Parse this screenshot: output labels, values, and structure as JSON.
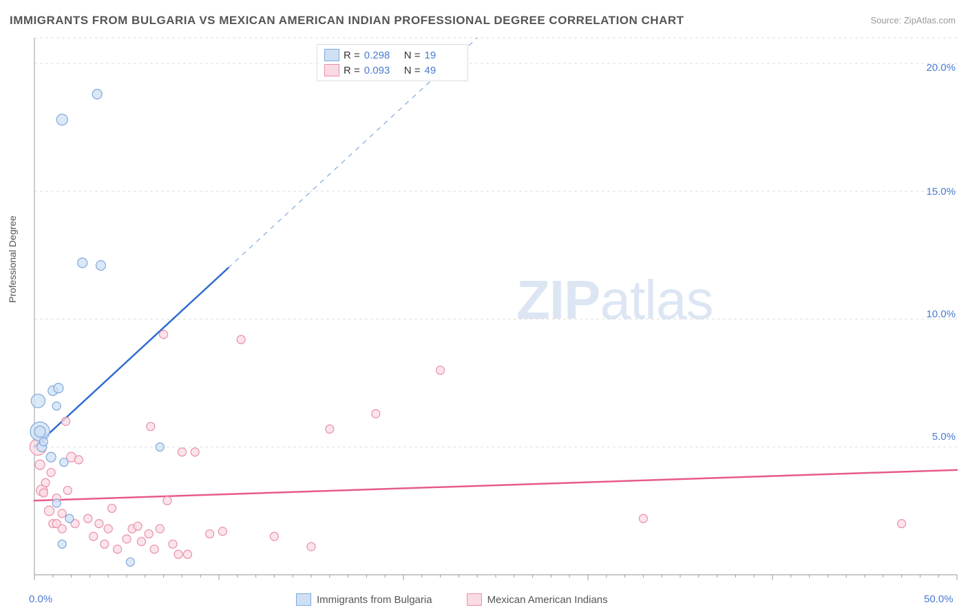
{
  "chart": {
    "type": "scatter",
    "title": "IMMIGRANTS FROM BULGARIA VS MEXICAN AMERICAN INDIAN PROFESSIONAL DEGREE CORRELATION CHART",
    "source_label": "Source: ZipAtlas.com",
    "ylabel": "Professional Degree",
    "watermark": "ZIPatlas",
    "xlim": [
      0,
      50
    ],
    "ylim": [
      0,
      21
    ],
    "xtick_major": [
      0,
      10,
      20,
      30,
      40,
      50
    ],
    "xtick_labeled": [
      0.0,
      50.0
    ],
    "ytick_major": [
      5,
      10,
      15,
      20
    ],
    "grid_color": "#dddddd",
    "axis_color": "#aaaaaa",
    "background_color": "#ffffff",
    "marker_radius_min": 5,
    "marker_radius_max": 14,
    "series": [
      {
        "id": "bulgaria",
        "label": "Immigrants from Bulgaria",
        "color_fill": "#cfe0f5",
        "color_stroke": "#7ea8d8",
        "r_value": 0.298,
        "n_value": 19,
        "trend": {
          "x1": 0,
          "y1": 5.0,
          "x2": 10.5,
          "y2": 12.0,
          "color": "#2f6bd0",
          "width": 2.5
        },
        "trend_dash": {
          "x1": 10.5,
          "y1": 12.0,
          "x2": 24,
          "y2": 21.0,
          "color": "#7ea8d8",
          "width": 1.2
        },
        "points": [
          {
            "x": 0.2,
            "y": 6.8,
            "s": 10
          },
          {
            "x": 0.3,
            "y": 5.6,
            "s": 14
          },
          {
            "x": 0.3,
            "y": 5.6,
            "s": 8
          },
          {
            "x": 0.4,
            "y": 5.0,
            "s": 7
          },
          {
            "x": 0.5,
            "y": 5.2,
            "s": 6
          },
          {
            "x": 0.9,
            "y": 4.6,
            "s": 7
          },
          {
            "x": 1.0,
            "y": 7.2,
            "s": 7
          },
          {
            "x": 1.2,
            "y": 6.6,
            "s": 6
          },
          {
            "x": 1.2,
            "y": 2.8,
            "s": 6
          },
          {
            "x": 1.3,
            "y": 7.3,
            "s": 7
          },
          {
            "x": 1.5,
            "y": 17.8,
            "s": 8
          },
          {
            "x": 1.6,
            "y": 4.4,
            "s": 6
          },
          {
            "x": 1.9,
            "y": 2.2,
            "s": 6
          },
          {
            "x": 2.6,
            "y": 12.2,
            "s": 7
          },
          {
            "x": 3.4,
            "y": 18.8,
            "s": 7
          },
          {
            "x": 3.6,
            "y": 12.1,
            "s": 7
          },
          {
            "x": 5.2,
            "y": 0.5,
            "s": 6
          },
          {
            "x": 6.8,
            "y": 5.0,
            "s": 6
          },
          {
            "x": 1.5,
            "y": 1.2,
            "s": 6
          }
        ]
      },
      {
        "id": "mexican",
        "label": "Mexican American Indians",
        "color_fill": "#fadbe3",
        "color_stroke": "#e98fa8",
        "r_value": 0.093,
        "n_value": 49,
        "trend": {
          "x1": 0,
          "y1": 2.9,
          "x2": 50,
          "y2": 4.1,
          "color": "#e65a88",
          "width": 2.5
        },
        "points": [
          {
            "x": 0.2,
            "y": 5.0,
            "s": 12
          },
          {
            "x": 0.3,
            "y": 4.3,
            "s": 7
          },
          {
            "x": 0.4,
            "y": 3.3,
            "s": 8
          },
          {
            "x": 0.5,
            "y": 3.2,
            "s": 6
          },
          {
            "x": 0.6,
            "y": 3.6,
            "s": 6
          },
          {
            "x": 0.8,
            "y": 2.5,
            "s": 7
          },
          {
            "x": 0.9,
            "y": 4.0,
            "s": 6
          },
          {
            "x": 1.0,
            "y": 2.0,
            "s": 6
          },
          {
            "x": 1.2,
            "y": 3.0,
            "s": 6
          },
          {
            "x": 1.2,
            "y": 2.0,
            "s": 6
          },
          {
            "x": 1.5,
            "y": 2.4,
            "s": 6
          },
          {
            "x": 1.5,
            "y": 1.8,
            "s": 6
          },
          {
            "x": 1.7,
            "y": 6.0,
            "s": 6
          },
          {
            "x": 1.8,
            "y": 3.3,
            "s": 6
          },
          {
            "x": 2.0,
            "y": 4.6,
            "s": 7
          },
          {
            "x": 2.2,
            "y": 2.0,
            "s": 6
          },
          {
            "x": 2.4,
            "y": 4.5,
            "s": 6
          },
          {
            "x": 2.9,
            "y": 2.2,
            "s": 6
          },
          {
            "x": 3.2,
            "y": 1.5,
            "s": 6
          },
          {
            "x": 3.5,
            "y": 2.0,
            "s": 6
          },
          {
            "x": 3.8,
            "y": 1.2,
            "s": 6
          },
          {
            "x": 4.0,
            "y": 1.8,
            "s": 6
          },
          {
            "x": 4.2,
            "y": 2.6,
            "s": 6
          },
          {
            "x": 4.5,
            "y": 1.0,
            "s": 6
          },
          {
            "x": 5.0,
            "y": 1.4,
            "s": 6
          },
          {
            "x": 5.3,
            "y": 1.8,
            "s": 6
          },
          {
            "x": 5.6,
            "y": 1.9,
            "s": 6
          },
          {
            "x": 5.8,
            "y": 1.3,
            "s": 6
          },
          {
            "x": 6.2,
            "y": 1.6,
            "s": 6
          },
          {
            "x": 6.3,
            "y": 5.8,
            "s": 6
          },
          {
            "x": 6.5,
            "y": 1.0,
            "s": 6
          },
          {
            "x": 6.8,
            "y": 1.8,
            "s": 6
          },
          {
            "x": 7.0,
            "y": 9.4,
            "s": 6
          },
          {
            "x": 7.2,
            "y": 2.9,
            "s": 6
          },
          {
            "x": 7.5,
            "y": 1.2,
            "s": 6
          },
          {
            "x": 7.8,
            "y": 0.8,
            "s": 6
          },
          {
            "x": 8.0,
            "y": 4.8,
            "s": 6
          },
          {
            "x": 8.3,
            "y": 0.8,
            "s": 6
          },
          {
            "x": 8.7,
            "y": 4.8,
            "s": 6
          },
          {
            "x": 9.5,
            "y": 1.6,
            "s": 6
          },
          {
            "x": 10.2,
            "y": 1.7,
            "s": 6
          },
          {
            "x": 11.2,
            "y": 9.2,
            "s": 6
          },
          {
            "x": 13.0,
            "y": 1.5,
            "s": 6
          },
          {
            "x": 15.0,
            "y": 1.1,
            "s": 6
          },
          {
            "x": 16.0,
            "y": 5.7,
            "s": 6
          },
          {
            "x": 18.5,
            "y": 6.3,
            "s": 6
          },
          {
            "x": 22.0,
            "y": 8.0,
            "s": 6
          },
          {
            "x": 33.0,
            "y": 2.2,
            "s": 6
          },
          {
            "x": 47.0,
            "y": 2.0,
            "s": 6
          }
        ]
      }
    ],
    "legend_top": {
      "r_label": "R =",
      "n_label": "N ="
    },
    "legend_bottom": {
      "items": [
        "Immigrants from Bulgaria",
        "Mexican American Indians"
      ]
    }
  }
}
